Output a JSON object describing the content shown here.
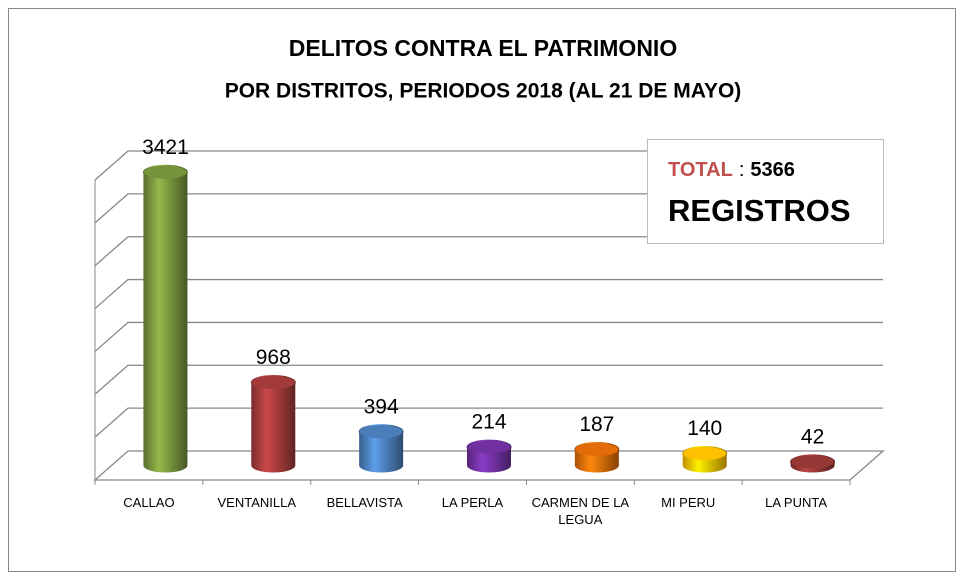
{
  "chart_data": {
    "type": "bar3d",
    "title": "DELITOS CONTRA EL PATRIMONIO",
    "subtitle": "POR DISTRITOS, PERIODOS 2018 (AL 21 DE MAYO)",
    "categories": [
      "CALLAO",
      "VENTANILLA",
      "BELLAVISTA",
      "LA PERLA",
      "CARMEN DE LA LEGUA",
      "MI PERU",
      "LA PUNTA"
    ],
    "values": [
      3421,
      968,
      394,
      214,
      187,
      140,
      42
    ],
    "colors": [
      "#77933c",
      "#a33a3a",
      "#4a7ebb",
      "#7030a0",
      "#e36c09",
      "#ffc000",
      "#953735"
    ],
    "ylim": [
      0,
      3500
    ],
    "yticks": [
      0,
      500,
      1000,
      1500,
      2000,
      2500,
      3000,
      3500
    ],
    "grid": true,
    "annotation": {
      "label": "TOTAL",
      "separator": ":",
      "value": 5366,
      "unit": "REGISTROS"
    }
  }
}
